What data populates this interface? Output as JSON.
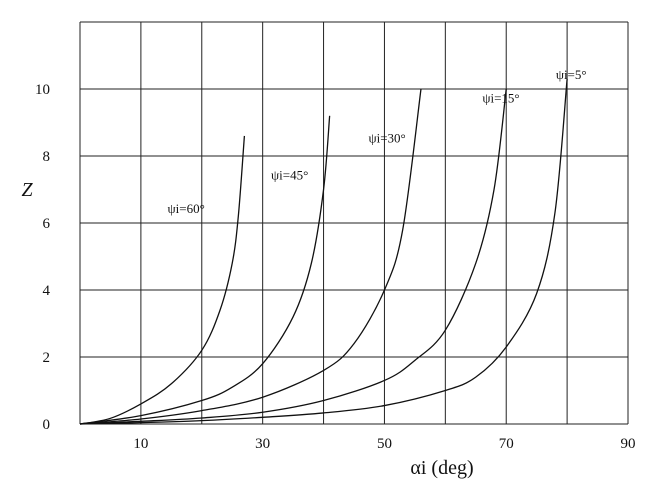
{
  "chart_data": {
    "type": "line",
    "title": "",
    "xlabel": "αi (deg)",
    "ylabel": "Z",
    "xlim": [
      0,
      90
    ],
    "ylim": [
      0,
      12
    ],
    "x_ticks": [
      10,
      30,
      50,
      70,
      90
    ],
    "y_ticks": [
      0,
      2,
      4,
      6,
      8,
      10
    ],
    "grid": true,
    "legend": "none",
    "colors": {
      "line": "#111111",
      "grid": "#222222"
    },
    "series": [
      {
        "name": "ψi=60°",
        "x": [
          0,
          5,
          10,
          15,
          20,
          23,
          25,
          26,
          27
        ],
        "y": [
          0,
          0.17,
          0.6,
          1.2,
          2.2,
          3.4,
          4.8,
          6.2,
          8.6
        ]
      },
      {
        "name": "ψi=45°",
        "x": [
          0,
          10,
          20,
          25,
          30,
          35,
          38,
          40,
          41
        ],
        "y": [
          0,
          0.25,
          0.7,
          1.1,
          1.8,
          3.2,
          4.8,
          7.0,
          9.2
        ]
      },
      {
        "name": "ψi=30°",
        "x": [
          0,
          10,
          20,
          30,
          40,
          45,
          50,
          53,
          56
        ],
        "y": [
          0,
          0.15,
          0.4,
          0.8,
          1.6,
          2.4,
          4.0,
          5.8,
          10.0
        ]
      },
      {
        "name": "ψi=15°",
        "x": [
          0,
          10,
          20,
          30,
          40,
          50,
          55,
          60,
          65,
          68,
          70
        ],
        "y": [
          0,
          0.08,
          0.18,
          0.35,
          0.7,
          1.3,
          1.9,
          2.8,
          4.8,
          7.0,
          10.0
        ]
      },
      {
        "name": "ψi=5°",
        "x": [
          0,
          10,
          20,
          30,
          40,
          50,
          60,
          65,
          70,
          75,
          78,
          80
        ],
        "y": [
          0,
          0.04,
          0.1,
          0.2,
          0.33,
          0.55,
          1.0,
          1.4,
          2.3,
          3.9,
          6.3,
          10.3
        ]
      }
    ]
  }
}
